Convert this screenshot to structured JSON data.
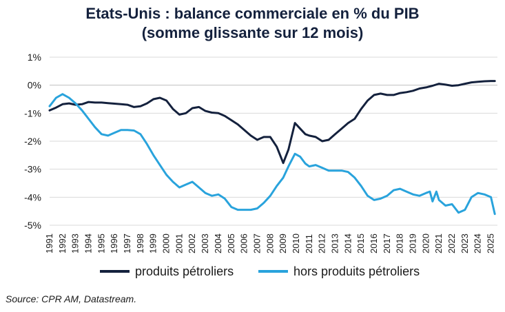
{
  "chart_data": {
    "type": "line",
    "title_line1": "Etats-Unis : balance commerciale en % du PIB",
    "title_line2": "(somme glissante sur 12 mois)",
    "xlabel": "",
    "ylabel": "",
    "ylim": [
      -5,
      1
    ],
    "yticks": [
      1,
      0,
      -1,
      -2,
      -3,
      -4,
      -5
    ],
    "ytick_labels": [
      "1%",
      "0%",
      "-1%",
      "-2%",
      "-3%",
      "-4%",
      "-5%"
    ],
    "xlim": [
      1991,
      2025.5
    ],
    "xtick_labels": [
      "1991",
      "1992",
      "1993",
      "1994",
      "1995",
      "1996",
      "1997",
      "1998",
      "1999",
      "2000",
      "2001",
      "2002",
      "2003",
      "2004",
      "2005",
      "2006",
      "2007",
      "2008",
      "2009",
      "2010",
      "2011",
      "2012",
      "2013",
      "2014",
      "2015",
      "2016",
      "2017",
      "2018",
      "2019",
      "2020",
      "2021",
      "2022",
      "2023",
      "2024",
      "2025"
    ],
    "grid": "horizontal",
    "legend_position": "bottom",
    "series": [
      {
        "name": "produits pétroliers",
        "color": "#14213d",
        "points": [
          [
            1991.0,
            -0.9
          ],
          [
            1991.5,
            -0.8
          ],
          [
            1992.0,
            -0.68
          ],
          [
            1992.5,
            -0.65
          ],
          [
            1993.0,
            -0.7
          ],
          [
            1993.5,
            -0.68
          ],
          [
            1994.0,
            -0.6
          ],
          [
            1994.5,
            -0.62
          ],
          [
            1995.0,
            -0.62
          ],
          [
            1995.5,
            -0.64
          ],
          [
            1996.0,
            -0.66
          ],
          [
            1996.5,
            -0.68
          ],
          [
            1997.0,
            -0.7
          ],
          [
            1997.5,
            -0.78
          ],
          [
            1998.0,
            -0.75
          ],
          [
            1998.5,
            -0.65
          ],
          [
            1999.0,
            -0.5
          ],
          [
            1999.5,
            -0.45
          ],
          [
            2000.0,
            -0.55
          ],
          [
            2000.5,
            -0.85
          ],
          [
            2001.0,
            -1.05
          ],
          [
            2001.5,
            -1.0
          ],
          [
            2002.0,
            -0.82
          ],
          [
            2002.5,
            -0.78
          ],
          [
            2003.0,
            -0.92
          ],
          [
            2003.5,
            -0.98
          ],
          [
            2004.0,
            -1.0
          ],
          [
            2004.5,
            -1.1
          ],
          [
            2005.0,
            -1.25
          ],
          [
            2005.5,
            -1.4
          ],
          [
            2006.0,
            -1.6
          ],
          [
            2006.5,
            -1.8
          ],
          [
            2007.0,
            -1.95
          ],
          [
            2007.5,
            -1.85
          ],
          [
            2008.0,
            -1.85
          ],
          [
            2008.5,
            -2.2
          ],
          [
            2009.0,
            -2.78
          ],
          [
            2009.4,
            -2.3
          ],
          [
            2009.9,
            -1.35
          ],
          [
            2010.3,
            -1.55
          ],
          [
            2010.7,
            -1.75
          ],
          [
            2011.0,
            -1.8
          ],
          [
            2011.5,
            -1.85
          ],
          [
            2012.0,
            -2.0
          ],
          [
            2012.5,
            -1.95
          ],
          [
            2013.0,
            -1.75
          ],
          [
            2013.5,
            -1.55
          ],
          [
            2014.0,
            -1.35
          ],
          [
            2014.5,
            -1.2
          ],
          [
            2015.0,
            -0.85
          ],
          [
            2015.5,
            -0.55
          ],
          [
            2016.0,
            -0.35
          ],
          [
            2016.5,
            -0.3
          ],
          [
            2017.0,
            -0.35
          ],
          [
            2017.5,
            -0.35
          ],
          [
            2018.0,
            -0.28
          ],
          [
            2018.5,
            -0.25
          ],
          [
            2019.0,
            -0.2
          ],
          [
            2019.5,
            -0.12
          ],
          [
            2020.0,
            -0.08
          ],
          [
            2020.5,
            -0.02
          ],
          [
            2021.0,
            0.05
          ],
          [
            2021.5,
            0.02
          ],
          [
            2022.0,
            -0.02
          ],
          [
            2022.5,
            0.0
          ],
          [
            2023.0,
            0.05
          ],
          [
            2023.5,
            0.1
          ],
          [
            2024.0,
            0.12
          ],
          [
            2024.5,
            0.14
          ],
          [
            2025.0,
            0.15
          ],
          [
            2025.3,
            0.15
          ]
        ]
      },
      {
        "name": "hors produits pétroliers",
        "color": "#29a3dc",
        "points": [
          [
            1991.0,
            -0.75
          ],
          [
            1991.5,
            -0.45
          ],
          [
            1992.0,
            -0.32
          ],
          [
            1992.5,
            -0.45
          ],
          [
            1993.0,
            -0.65
          ],
          [
            1993.5,
            -0.9
          ],
          [
            1994.0,
            -1.2
          ],
          [
            1994.5,
            -1.5
          ],
          [
            1995.0,
            -1.75
          ],
          [
            1995.5,
            -1.8
          ],
          [
            1996.0,
            -1.7
          ],
          [
            1996.5,
            -1.6
          ],
          [
            1997.0,
            -1.6
          ],
          [
            1997.5,
            -1.62
          ],
          [
            1998.0,
            -1.75
          ],
          [
            1998.5,
            -2.1
          ],
          [
            1999.0,
            -2.5
          ],
          [
            1999.5,
            -2.85
          ],
          [
            2000.0,
            -3.2
          ],
          [
            2000.5,
            -3.45
          ],
          [
            2001.0,
            -3.65
          ],
          [
            2001.5,
            -3.55
          ],
          [
            2002.0,
            -3.45
          ],
          [
            2002.5,
            -3.65
          ],
          [
            2003.0,
            -3.85
          ],
          [
            2003.5,
            -3.95
          ],
          [
            2004.0,
            -3.9
          ],
          [
            2004.5,
            -4.05
          ],
          [
            2005.0,
            -4.35
          ],
          [
            2005.5,
            -4.45
          ],
          [
            2006.0,
            -4.45
          ],
          [
            2006.5,
            -4.45
          ],
          [
            2007.0,
            -4.4
          ],
          [
            2007.5,
            -4.2
          ],
          [
            2008.0,
            -3.95
          ],
          [
            2008.5,
            -3.6
          ],
          [
            2009.0,
            -3.3
          ],
          [
            2009.4,
            -2.9
          ],
          [
            2009.9,
            -2.45
          ],
          [
            2010.3,
            -2.55
          ],
          [
            2010.7,
            -2.8
          ],
          [
            2011.0,
            -2.9
          ],
          [
            2011.5,
            -2.85
          ],
          [
            2012.0,
            -2.95
          ],
          [
            2012.5,
            -3.05
          ],
          [
            2013.0,
            -3.05
          ],
          [
            2013.5,
            -3.05
          ],
          [
            2014.0,
            -3.1
          ],
          [
            2014.5,
            -3.3
          ],
          [
            2015.0,
            -3.6
          ],
          [
            2015.5,
            -3.95
          ],
          [
            2016.0,
            -4.1
          ],
          [
            2016.5,
            -4.05
          ],
          [
            2017.0,
            -3.95
          ],
          [
            2017.5,
            -3.75
          ],
          [
            2018.0,
            -3.7
          ],
          [
            2018.5,
            -3.8
          ],
          [
            2019.0,
            -3.9
          ],
          [
            2019.5,
            -3.95
          ],
          [
            2020.0,
            -3.85
          ],
          [
            2020.3,
            -3.8
          ],
          [
            2020.5,
            -4.15
          ],
          [
            2020.8,
            -3.8
          ],
          [
            2021.0,
            -4.1
          ],
          [
            2021.5,
            -4.3
          ],
          [
            2022.0,
            -4.25
          ],
          [
            2022.5,
            -4.55
          ],
          [
            2023.0,
            -4.45
          ],
          [
            2023.5,
            -4.0
          ],
          [
            2024.0,
            -3.85
          ],
          [
            2024.5,
            -3.9
          ],
          [
            2025.0,
            -4.0
          ],
          [
            2025.3,
            -4.6
          ]
        ]
      }
    ],
    "source": "Source: CPR AM, Datastream."
  }
}
